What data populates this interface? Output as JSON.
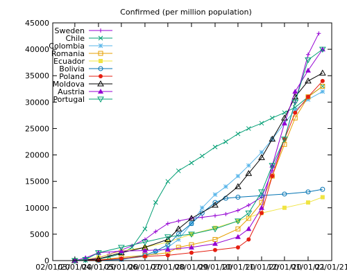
{
  "chart_data": {
    "type": "line",
    "title": "Confirmed (per million population)",
    "xlabel": "",
    "ylabel": "",
    "x_ticks": [
      "02/01/20",
      "03/01/20",
      "04/01/20",
      "05/01/20",
      "06/01/20",
      "07/01/20",
      "08/01/20",
      "09/01/20",
      "10/01/20",
      "11/01/20",
      "12/01/20",
      "01/01/21",
      "02/01/21"
    ],
    "ylim": [
      0,
      45000
    ],
    "y_ticks": [
      0,
      5000,
      10000,
      15000,
      20000,
      25000,
      30000,
      35000,
      40000,
      45000
    ],
    "legend_position": "top-left",
    "grid": false,
    "series": [
      {
        "name": "Sweden",
        "color": "#9400d3",
        "marker": "plus",
        "points": [
          [
            "2020-03-01",
            0
          ],
          [
            "2020-03-15",
            100
          ],
          [
            "2020-04-01",
            500
          ],
          [
            "2020-04-15",
            1200
          ],
          [
            "2020-05-01",
            2000
          ],
          [
            "2020-05-15",
            2800
          ],
          [
            "2020-06-01",
            4000
          ],
          [
            "2020-06-15",
            5500
          ],
          [
            "2020-07-01",
            7000
          ],
          [
            "2020-07-15",
            7500
          ],
          [
            "2020-08-01",
            8000
          ],
          [
            "2020-08-15",
            8200
          ],
          [
            "2020-09-01",
            8500
          ],
          [
            "2020-09-15",
            8800
          ],
          [
            "2020-10-01",
            9500
          ],
          [
            "2020-10-15",
            10500
          ],
          [
            "2020-11-01",
            12000
          ],
          [
            "2020-11-15",
            17000
          ],
          [
            "2020-12-01",
            23000
          ],
          [
            "2020-12-15",
            30000
          ],
          [
            "2021-01-01",
            39000
          ],
          [
            "2021-01-15",
            43000
          ]
        ]
      },
      {
        "name": "Chile",
        "color": "#009e73",
        "marker": "x",
        "points": [
          [
            "2020-03-01",
            0
          ],
          [
            "2020-03-15",
            50
          ],
          [
            "2020-04-01",
            300
          ],
          [
            "2020-04-15",
            700
          ],
          [
            "2020-05-01",
            1300
          ],
          [
            "2020-05-15",
            2500
          ],
          [
            "2020-06-01",
            6000
          ],
          [
            "2020-06-15",
            11000
          ],
          [
            "2020-07-01",
            15000
          ],
          [
            "2020-07-15",
            17000
          ],
          [
            "2020-08-01",
            18500
          ],
          [
            "2020-08-15",
            19800
          ],
          [
            "2020-09-01",
            21500
          ],
          [
            "2020-09-15",
            22500
          ],
          [
            "2020-10-01",
            24000
          ],
          [
            "2020-10-15",
            25000
          ],
          [
            "2020-11-01",
            26000
          ],
          [
            "2020-11-15",
            27000
          ],
          [
            "2020-12-01",
            28000
          ],
          [
            "2020-12-15",
            29000
          ],
          [
            "2021-01-01",
            31000
          ],
          [
            "2021-01-20",
            33000
          ]
        ]
      },
      {
        "name": "Colombia",
        "color": "#56b4e9",
        "marker": "star",
        "points": [
          [
            "2020-03-01",
            0
          ],
          [
            "2020-04-01",
            50
          ],
          [
            "2020-05-01",
            200
          ],
          [
            "2020-06-01",
            800
          ],
          [
            "2020-06-15",
            1500
          ],
          [
            "2020-07-01",
            2500
          ],
          [
            "2020-07-15",
            4000
          ],
          [
            "2020-08-01",
            7000
          ],
          [
            "2020-08-15",
            10000
          ],
          [
            "2020-09-01",
            12500
          ],
          [
            "2020-09-15",
            14000
          ],
          [
            "2020-10-01",
            16000
          ],
          [
            "2020-10-15",
            18000
          ],
          [
            "2020-11-01",
            20500
          ],
          [
            "2020-11-15",
            23000
          ],
          [
            "2020-12-01",
            26000
          ],
          [
            "2020-12-15",
            28500
          ],
          [
            "2021-01-01",
            30500
          ],
          [
            "2021-01-20",
            32000
          ]
        ]
      },
      {
        "name": "Romania",
        "color": "#e69f00",
        "marker": "square-open",
        "points": [
          [
            "2020-03-01",
            0
          ],
          [
            "2020-04-01",
            100
          ],
          [
            "2020-05-01",
            600
          ],
          [
            "2020-06-01",
            1000
          ],
          [
            "2020-07-01",
            1500
          ],
          [
            "2020-07-15",
            2500
          ],
          [
            "2020-08-01",
            3000
          ],
          [
            "2020-09-01",
            4000
          ],
          [
            "2020-10-01",
            6000
          ],
          [
            "2020-10-15",
            8000
          ],
          [
            "2020-11-01",
            11000
          ],
          [
            "2020-11-15",
            16000
          ],
          [
            "2020-12-01",
            22000
          ],
          [
            "2020-12-15",
            27000
          ],
          [
            "2021-01-01",
            31000
          ],
          [
            "2021-01-20",
            33000
          ]
        ]
      },
      {
        "name": "Ecuador",
        "color": "#f0e442",
        "marker": "square",
        "points": [
          [
            "2020-03-01",
            0
          ],
          [
            "2020-04-01",
            600
          ],
          [
            "2020-05-01",
            1800
          ],
          [
            "2020-06-01",
            2500
          ],
          [
            "2020-07-01",
            3500
          ],
          [
            "2020-08-01",
            5000
          ],
          [
            "2020-09-01",
            6200
          ],
          [
            "2020-10-01",
            7500
          ],
          [
            "2020-11-01",
            9000
          ],
          [
            "2020-12-01",
            10000
          ],
          [
            "2021-01-01",
            11000
          ],
          [
            "2021-01-20",
            12000
          ]
        ]
      },
      {
        "name": "Bolivia",
        "color": "#0072b2",
        "marker": "circle",
        "points": [
          [
            "2020-03-01",
            0
          ],
          [
            "2020-04-01",
            50
          ],
          [
            "2020-05-01",
            300
          ],
          [
            "2020-06-01",
            1000
          ],
          [
            "2020-06-15",
            1800
          ],
          [
            "2020-07-01",
            3000
          ],
          [
            "2020-07-15",
            5000
          ],
          [
            "2020-08-01",
            7000
          ],
          [
            "2020-08-15",
            9000
          ],
          [
            "2020-09-01",
            11000
          ],
          [
            "2020-09-15",
            11800
          ],
          [
            "2020-10-01",
            12000
          ],
          [
            "2020-11-01",
            12300
          ],
          [
            "2020-12-01",
            12600
          ],
          [
            "2021-01-01",
            13000
          ],
          [
            "2021-01-20",
            13500
          ]
        ]
      },
      {
        "name": "Poland",
        "color": "#e51e10",
        "marker": "circle-filled",
        "points": [
          [
            "2020-03-01",
            0
          ],
          [
            "2020-04-01",
            100
          ],
          [
            "2020-05-01",
            400
          ],
          [
            "2020-06-01",
            800
          ],
          [
            "2020-07-01",
            1000
          ],
          [
            "2020-08-01",
            1500
          ],
          [
            "2020-09-01",
            2000
          ],
          [
            "2020-10-01",
            2500
          ],
          [
            "2020-10-15",
            4000
          ],
          [
            "2020-11-01",
            9000
          ],
          [
            "2020-11-15",
            16000
          ],
          [
            "2020-12-01",
            23000
          ],
          [
            "2020-12-15",
            28000
          ],
          [
            "2021-01-01",
            31000
          ],
          [
            "2021-01-20",
            34000
          ]
        ]
      },
      {
        "name": "Moldova",
        "color": "#000000",
        "marker": "triangle-open",
        "points": [
          [
            "2020-03-01",
            0
          ],
          [
            "2020-04-01",
            300
          ],
          [
            "2020-05-01",
            1500
          ],
          [
            "2020-06-01",
            2500
          ],
          [
            "2020-07-01",
            4000
          ],
          [
            "2020-07-15",
            6000
          ],
          [
            "2020-08-01",
            8000
          ],
          [
            "2020-09-01",
            10500
          ],
          [
            "2020-10-01",
            14000
          ],
          [
            "2020-10-15",
            16500
          ],
          [
            "2020-11-01",
            19500
          ],
          [
            "2020-11-15",
            23000
          ],
          [
            "2020-12-01",
            27000
          ],
          [
            "2020-12-15",
            31000
          ],
          [
            "2021-01-01",
            34000
          ],
          [
            "2021-01-20",
            35500
          ]
        ]
      },
      {
        "name": "Austria",
        "color": "#9400d3",
        "marker": "triangle",
        "points": [
          [
            "2020-03-01",
            0
          ],
          [
            "2020-03-15",
            500
          ],
          [
            "2020-04-01",
            1500
          ],
          [
            "2020-05-01",
            1800
          ],
          [
            "2020-06-01",
            1900
          ],
          [
            "2020-07-01",
            2100
          ],
          [
            "2020-08-01",
            2500
          ],
          [
            "2020-09-01",
            3200
          ],
          [
            "2020-10-01",
            4500
          ],
          [
            "2020-10-15",
            6000
          ],
          [
            "2020-11-01",
            10000
          ],
          [
            "2020-11-15",
            18000
          ],
          [
            "2020-12-01",
            26000
          ],
          [
            "2020-12-15",
            32000
          ],
          [
            "2021-01-01",
            36000
          ],
          [
            "2021-01-20",
            40000
          ]
        ]
      },
      {
        "name": "Portugal",
        "color": "#009e73",
        "marker": "triangle-down",
        "points": [
          [
            "2020-03-01",
            0
          ],
          [
            "2020-03-15",
            200
          ],
          [
            "2020-04-01",
            1500
          ],
          [
            "2020-05-01",
            2500
          ],
          [
            "2020-06-01",
            3500
          ],
          [
            "2020-07-01",
            4500
          ],
          [
            "2020-08-01",
            5000
          ],
          [
            "2020-09-01",
            6000
          ],
          [
            "2020-10-01",
            7500
          ],
          [
            "2020-10-15",
            9000
          ],
          [
            "2020-11-01",
            13000
          ],
          [
            "2020-11-15",
            18000
          ],
          [
            "2020-12-01",
            23000
          ],
          [
            "2020-12-15",
            30000
          ],
          [
            "2021-01-01",
            38000
          ],
          [
            "2021-01-20",
            40000
          ]
        ]
      }
    ]
  }
}
